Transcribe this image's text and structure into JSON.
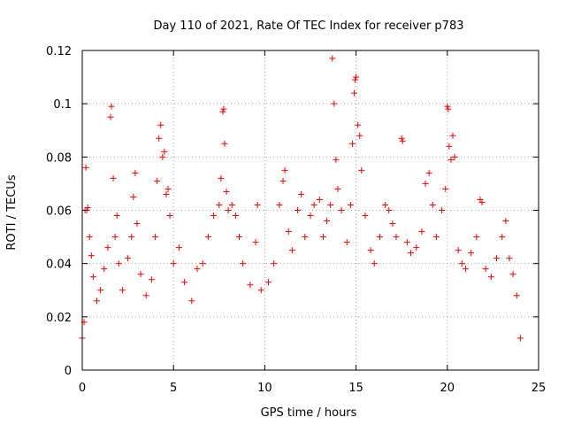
{
  "chart_data": {
    "type": "scatter",
    "title": "Day 110 of 2021, Rate Of TEC Index for receiver p783",
    "xlabel": "GPS time / hours",
    "ylabel": "ROTI / TECUs",
    "xlim": [
      0,
      25
    ],
    "ylim": [
      0,
      0.12
    ],
    "xticks": [
      0,
      5,
      10,
      15,
      20,
      25
    ],
    "yticks": [
      0,
      0.02,
      0.04,
      0.06,
      0.08,
      0.1,
      0.12
    ],
    "xtick_labels": [
      "0",
      "5",
      "10",
      "15",
      "20",
      "25"
    ],
    "ytick_labels": [
      "0",
      "0.02",
      "0.04",
      "0.06",
      "0.08",
      "0.1",
      "0.12"
    ],
    "grid": true,
    "marker": "+",
    "color": "#ff0000",
    "series": [
      {
        "name": "ROTI",
        "points": [
          [
            0.0,
            0.012
          ],
          [
            0.1,
            0.018
          ],
          [
            0.15,
            0.06
          ],
          [
            0.2,
            0.076
          ],
          [
            0.25,
            0.06
          ],
          [
            0.3,
            0.061
          ],
          [
            0.4,
            0.05
          ],
          [
            0.5,
            0.043
          ],
          [
            0.6,
            0.035
          ],
          [
            0.8,
            0.026
          ],
          [
            1.0,
            0.03
          ],
          [
            1.2,
            0.038
          ],
          [
            1.4,
            0.046
          ],
          [
            1.55,
            0.095
          ],
          [
            1.6,
            0.099
          ],
          [
            1.7,
            0.072
          ],
          [
            1.8,
            0.05
          ],
          [
            1.9,
            0.058
          ],
          [
            2.0,
            0.04
          ],
          [
            2.2,
            0.03
          ],
          [
            2.5,
            0.042
          ],
          [
            2.7,
            0.05
          ],
          [
            2.8,
            0.065
          ],
          [
            2.9,
            0.074
          ],
          [
            3.0,
            0.055
          ],
          [
            3.2,
            0.036
          ],
          [
            3.5,
            0.028
          ],
          [
            3.8,
            0.034
          ],
          [
            4.0,
            0.05
          ],
          [
            4.1,
            0.071
          ],
          [
            4.2,
            0.087
          ],
          [
            4.3,
            0.092
          ],
          [
            4.4,
            0.08
          ],
          [
            4.5,
            0.082
          ],
          [
            4.6,
            0.066
          ],
          [
            4.7,
            0.068
          ],
          [
            4.8,
            0.058
          ],
          [
            5.0,
            0.04
          ],
          [
            5.3,
            0.046
          ],
          [
            5.6,
            0.033
          ],
          [
            6.0,
            0.026
          ],
          [
            6.3,
            0.038
          ],
          [
            6.6,
            0.04
          ],
          [
            6.9,
            0.05
          ],
          [
            7.2,
            0.058
          ],
          [
            7.5,
            0.062
          ],
          [
            7.6,
            0.072
          ],
          [
            7.7,
            0.097
          ],
          [
            7.75,
            0.098
          ],
          [
            7.8,
            0.085
          ],
          [
            7.9,
            0.067
          ],
          [
            8.0,
            0.06
          ],
          [
            8.2,
            0.062
          ],
          [
            8.4,
            0.058
          ],
          [
            8.6,
            0.05
          ],
          [
            8.8,
            0.04
          ],
          [
            9.2,
            0.032
          ],
          [
            9.5,
            0.048
          ],
          [
            9.6,
            0.062
          ],
          [
            9.8,
            0.03
          ],
          [
            10.2,
            0.033
          ],
          [
            10.5,
            0.04
          ],
          [
            10.8,
            0.062
          ],
          [
            11.0,
            0.071
          ],
          [
            11.1,
            0.075
          ],
          [
            11.3,
            0.052
          ],
          [
            11.5,
            0.045
          ],
          [
            11.8,
            0.06
          ],
          [
            12.0,
            0.066
          ],
          [
            12.2,
            0.05
          ],
          [
            12.5,
            0.058
          ],
          [
            12.7,
            0.062
          ],
          [
            13.0,
            0.064
          ],
          [
            13.2,
            0.05
          ],
          [
            13.4,
            0.056
          ],
          [
            13.6,
            0.062
          ],
          [
            13.7,
            0.117
          ],
          [
            13.8,
            0.1
          ],
          [
            13.9,
            0.079
          ],
          [
            14.0,
            0.068
          ],
          [
            14.2,
            0.06
          ],
          [
            14.5,
            0.048
          ],
          [
            14.7,
            0.062
          ],
          [
            14.8,
            0.085
          ],
          [
            14.9,
            0.104
          ],
          [
            14.95,
            0.109
          ],
          [
            15.0,
            0.11
          ],
          [
            15.1,
            0.092
          ],
          [
            15.2,
            0.088
          ],
          [
            15.3,
            0.075
          ],
          [
            15.5,
            0.058
          ],
          [
            15.8,
            0.045
          ],
          [
            16.0,
            0.04
          ],
          [
            16.3,
            0.05
          ],
          [
            16.6,
            0.062
          ],
          [
            16.8,
            0.06
          ],
          [
            17.0,
            0.055
          ],
          [
            17.2,
            0.05
          ],
          [
            17.5,
            0.087
          ],
          [
            17.55,
            0.086
          ],
          [
            17.8,
            0.048
          ],
          [
            18.0,
            0.044
          ],
          [
            18.3,
            0.046
          ],
          [
            18.6,
            0.052
          ],
          [
            18.8,
            0.07
          ],
          [
            19.0,
            0.074
          ],
          [
            19.2,
            0.062
          ],
          [
            19.4,
            0.05
          ],
          [
            19.7,
            0.06
          ],
          [
            19.9,
            0.068
          ],
          [
            20.0,
            0.099
          ],
          [
            20.05,
            0.098
          ],
          [
            20.1,
            0.084
          ],
          [
            20.2,
            0.079
          ],
          [
            20.3,
            0.088
          ],
          [
            20.4,
            0.08
          ],
          [
            20.6,
            0.045
          ],
          [
            20.8,
            0.04
          ],
          [
            21.0,
            0.038
          ],
          [
            21.3,
            0.044
          ],
          [
            21.6,
            0.05
          ],
          [
            21.8,
            0.064
          ],
          [
            21.9,
            0.063
          ],
          [
            22.1,
            0.038
          ],
          [
            22.4,
            0.035
          ],
          [
            22.7,
            0.042
          ],
          [
            23.0,
            0.05
          ],
          [
            23.2,
            0.056
          ],
          [
            23.4,
            0.042
          ],
          [
            23.6,
            0.036
          ],
          [
            23.8,
            0.028
          ],
          [
            24.0,
            0.012
          ]
        ]
      }
    ]
  }
}
